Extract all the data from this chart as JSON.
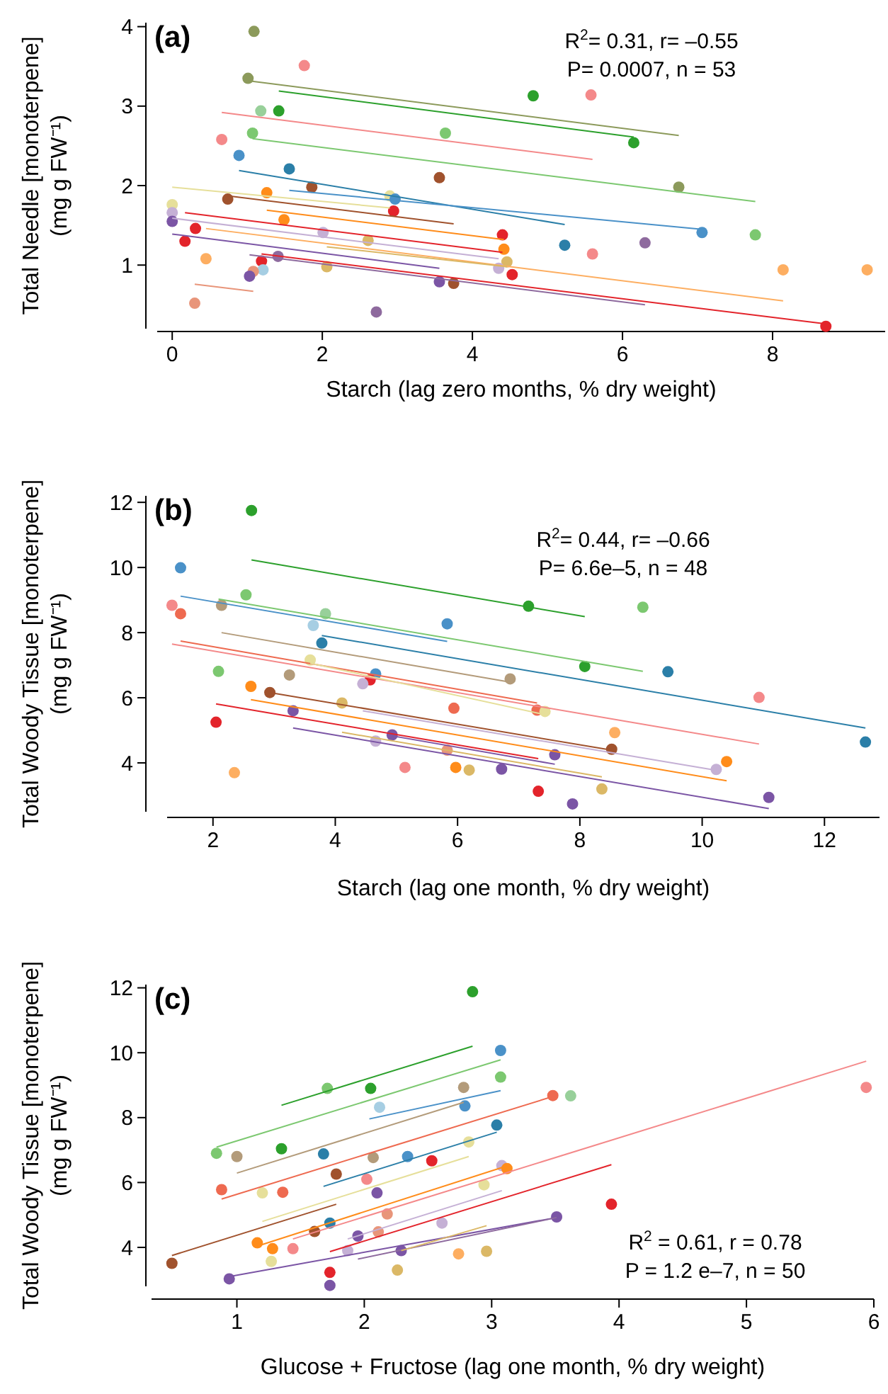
{
  "chart_data": [
    {
      "type": "scatter",
      "title": "(a)",
      "xlabel": "Starch (lag zero months, % dry weight)",
      "ylabel": "Total Needle [monoterpene]\n(mg g FW⁻¹)",
      "annotations": [
        "R$^{2}$= 0.31, r= –0.55",
        "P= 0.0007, n = 53"
      ],
      "xlim": [
        -0.2,
        9.5
      ],
      "ylim": [
        0.2,
        4.05
      ],
      "xticks": [
        0,
        2,
        4,
        6,
        8
      ],
      "yticks": [
        1,
        2,
        3,
        4
      ],
      "grid": false,
      "series": [
        {
          "marker": "circle",
          "x": [
            1.09,
            1.76,
            1.01,
            1.18,
            1.42,
            4.81,
            5.58,
            6.15,
            0.66,
            1.07,
            3.64,
            0.89,
            1.56,
            1.86,
            3.56,
            6.75,
            0.74,
            1.26,
            2.9,
            2.97,
            2.95,
            0,
            0,
            0,
            0.31,
            0.17,
            1.49,
            0.45,
            2.01,
            2.61,
            4.4,
            4.42,
            4.46,
            4.35,
            4.53,
            5.23,
            5.6,
            6.3,
            7.06,
            7.77,
            8.14,
            9.26,
            8.71,
            1.19,
            1.41,
            1.21,
            1.08,
            1.03,
            2.06,
            3.56,
            3.75,
            0.3,
            2.72
          ],
          "values": [
            3.94,
            3.51,
            3.35,
            2.94,
            2.94,
            3.13,
            3.14,
            2.54,
            2.58,
            2.66,
            2.66,
            2.38,
            2.21,
            1.98,
            2.1,
            1.98,
            1.83,
            1.91,
            1.87,
            1.83,
            1.68,
            1.76,
            1.66,
            1.55,
            1.46,
            1.3,
            1.57,
            1.08,
            1.41,
            1.31,
            1.38,
            1.2,
            1.04,
            0.96,
            0.88,
            1.25,
            1.14,
            1.28,
            1.41,
            1.38,
            0.94,
            0.94,
            0.23,
            1.05,
            1.11,
            0.94,
            0.92,
            0.86,
            0.98,
            0.79,
            0.77,
            0.52,
            0.41
          ],
          "colors": [
            "#8c9a5b",
            "#f4898a",
            "#8c9a5b",
            "#98d09a",
            "#2ca02c",
            "#2ca02c",
            "#f4898a",
            "#2ca02c",
            "#f4898a",
            "#7cc870",
            "#7cc870",
            "#4a91c8",
            "#2b7fa8",
            "#a0522d",
            "#a0522d",
            "#8c9a5b",
            "#a0522d",
            "#ff8c1a",
            "#e6df9a",
            "#4a91c8",
            "#e3242b",
            "#e6df9a",
            "#c5b0d5",
            "#7b55a5",
            "#e3242b",
            "#e3242b",
            "#ff8c1a",
            "#fdae61",
            "#c5b0d5",
            "#dbb866",
            "#e3242b",
            "#ff8c1a",
            "#dbb866",
            "#c5b0d5",
            "#e3242b",
            "#2b7fa8",
            "#f4898a",
            "#8e6a9e",
            "#4a91c8",
            "#7cc870",
            "#fdae61",
            "#fdae61",
            "#e3242b",
            "#e3242b",
            "#8e6a9e",
            "#a6cee3",
            "#e8957a",
            "#7b55a5",
            "#dbb866",
            "#7b55a5",
            "#a0522d",
            "#e8957a",
            "#8e6a9e"
          ]
        },
        {
          "type": "line",
          "x": [
            1.01,
            6.75
          ],
          "values": [
            3.32,
            2.63
          ],
          "color": "#8c9a5b",
          "marker": "none"
        },
        {
          "type": "line",
          "x": [
            1.42,
            6.15
          ],
          "values": [
            3.19,
            2.61
          ],
          "color": "#2ca02c"
        },
        {
          "type": "line",
          "x": [
            0.66,
            5.6
          ],
          "values": [
            2.92,
            2.33
          ],
          "color": "#f4898a"
        },
        {
          "type": "line",
          "x": [
            1.07,
            7.77
          ],
          "values": [
            2.59,
            1.8
          ],
          "color": "#7cc870"
        },
        {
          "type": "line",
          "x": [
            0.89,
            5.23
          ],
          "values": [
            2.19,
            1.51
          ],
          "color": "#2b7fa8"
        },
        {
          "type": "line",
          "x": [
            1.56,
            7.06
          ],
          "values": [
            1.94,
            1.45
          ],
          "color": "#4a91c8"
        },
        {
          "type": "line",
          "x": [
            0,
            2.9
          ],
          "values": [
            1.98,
            1.72
          ],
          "color": "#e6df9a"
        },
        {
          "type": "line",
          "x": [
            0.74,
            3.75
          ],
          "values": [
            1.87,
            1.52
          ],
          "color": "#a0522d"
        },
        {
          "type": "line",
          "x": [
            1.26,
            4.42
          ],
          "values": [
            1.69,
            1.32
          ],
          "color": "#ff8c1a"
        },
        {
          "type": "line",
          "x": [
            0.17,
            4.4
          ],
          "values": [
            1.66,
            1.16
          ],
          "color": "#e3242b"
        },
        {
          "type": "line",
          "x": [
            0.45,
            8.14
          ],
          "values": [
            1.46,
            0.55
          ],
          "color": "#fdae61"
        },
        {
          "type": "line",
          "x": [
            0,
            4.35
          ],
          "values": [
            1.59,
            1.08
          ],
          "color": "#c5b0d5"
        },
        {
          "type": "line",
          "x": [
            2.06,
            4.46
          ],
          "values": [
            1.23,
            0.98
          ],
          "color": "#dbb866"
        },
        {
          "type": "line",
          "x": [
            0,
            3.56
          ],
          "values": [
            1.39,
            0.96
          ],
          "color": "#7b55a5"
        },
        {
          "type": "line",
          "x": [
            1.03,
            6.3
          ],
          "values": [
            1.13,
            0.5
          ],
          "color": "#8e6a9e"
        },
        {
          "type": "line",
          "x": [
            1.19,
            8.71
          ],
          "values": [
            1.14,
            0.26
          ],
          "color": "#e3242b"
        },
        {
          "type": "line",
          "x": [
            0.3,
            1.08
          ],
          "values": [
            0.76,
            0.67
          ],
          "color": "#e8957a"
        }
      ]
    },
    {
      "type": "scatter",
      "title": "(b)",
      "xlabel": "Starch (lag one month, % dry weight)",
      "ylabel": "Total Woody Tissue [monoterpene]\n(mg g FW⁻¹)",
      "annotations": [
        "R$^{2}$= 0.44, r= –0.66",
        "P= 6.6e–5, n = 48"
      ],
      "xlim": [
        1.25,
        12.9
      ],
      "ylim": [
        2.5,
        12.2
      ],
      "xticks": [
        2,
        4,
        6,
        8,
        10,
        12
      ],
      "yticks": [
        4,
        6,
        8,
        10,
        12
      ],
      "grid": false,
      "series": [
        {
          "marker": "circle",
          "x": [
            2.63,
            1.47,
            2.54,
            1.33,
            1.47,
            2.14,
            3.84,
            3.64,
            5.83,
            7.16,
            9.03,
            3.78,
            3.59,
            2.09,
            3.25,
            4.66,
            4.57,
            4.45,
            8.08,
            9.44,
            6.86,
            2.62,
            2.93,
            4.11,
            3.31,
            5.94,
            7.3,
            7.43,
            10.93,
            2.05,
            4.93,
            4.66,
            5.83,
            7.59,
            8.57,
            8.52,
            10.4,
            10.23,
            12.67,
            2.35,
            5.14,
            5.97,
            6.19,
            6.72,
            7.32,
            8.36,
            7.88,
            11.09
          ],
          "values": [
            11.75,
            9.99,
            9.16,
            8.84,
            8.58,
            8.84,
            8.58,
            8.22,
            8.27,
            8.81,
            8.78,
            7.68,
            7.16,
            6.81,
            6.7,
            6.73,
            6.55,
            6.43,
            6.96,
            6.8,
            6.58,
            6.35,
            6.16,
            5.84,
            5.6,
            5.68,
            5.62,
            5.58,
            6.01,
            5.25,
            4.86,
            4.67,
            4.39,
            4.25,
            4.93,
            4.42,
            4.04,
            3.8,
            4.64,
            3.7,
            3.86,
            3.86,
            3.78,
            3.81,
            3.13,
            3.2,
            2.74,
            2.94
          ],
          "colors": [
            "#2ca02c",
            "#4a91c8",
            "#7cc870",
            "#f4898a",
            "#ee6a50",
            "#b39b7a",
            "#98d09a",
            "#a6cee3",
            "#4a91c8",
            "#2ca02c",
            "#7cc870",
            "#2b7fa8",
            "#e6df9a",
            "#7cc870",
            "#b39b7a",
            "#4a91c8",
            "#e3242b",
            "#c5b0d5",
            "#2ca02c",
            "#2b7fa8",
            "#b39b7a",
            "#ff8c1a",
            "#a0522d",
            "#dbb866",
            "#7b55a5",
            "#ee6a50",
            "#ee6a50",
            "#e6df9a",
            "#f4898a",
            "#e3242b",
            "#7b55a5",
            "#c5b0d5",
            "#e8957a",
            "#7b55a5",
            "#fdae61",
            "#a0522d",
            "#ff8c1a",
            "#c5b0d5",
            "#2b7fa8",
            "#fdae61",
            "#f4898a",
            "#ff8c1a",
            "#dbb866",
            "#7b55a5",
            "#e3242b",
            "#dbb866",
            "#7b55a5",
            "#7b55a5"
          ]
        },
        {
          "type": "line",
          "x": [
            2.63,
            8.08
          ],
          "values": [
            10.23,
            8.49
          ],
          "color": "#2ca02c"
        },
        {
          "type": "line",
          "x": [
            2.09,
            9.03
          ],
          "values": [
            9.03,
            6.81
          ],
          "color": "#7cc870"
        },
        {
          "type": "line",
          "x": [
            1.47,
            5.83
          ],
          "values": [
            9.12,
            7.73
          ],
          "color": "#4a91c8"
        },
        {
          "type": "line",
          "x": [
            3.78,
            12.67
          ],
          "values": [
            7.91,
            5.07
          ],
          "color": "#2b7fa8"
        },
        {
          "type": "line",
          "x": [
            2.14,
            6.86
          ],
          "values": [
            8.0,
            6.48
          ],
          "color": "#b39b7a"
        },
        {
          "type": "line",
          "x": [
            1.33,
            10.93
          ],
          "values": [
            7.65,
            4.58
          ],
          "color": "#f4898a"
        },
        {
          "type": "line",
          "x": [
            1.47,
            7.3
          ],
          "values": [
            7.74,
            5.84
          ],
          "color": "#ee6a50"
        },
        {
          "type": "line",
          "x": [
            3.59,
            7.43
          ],
          "values": [
            7.06,
            5.48
          ],
          "color": "#e6df9a"
        },
        {
          "type": "line",
          "x": [
            2.93,
            8.52
          ],
          "values": [
            6.16,
            4.39
          ],
          "color": "#a0522d"
        },
        {
          "type": "line",
          "x": [
            2.62,
            10.4
          ],
          "values": [
            5.94,
            3.45
          ],
          "color": "#ff8c1a"
        },
        {
          "type": "line",
          "x": [
            4.45,
            10.23
          ],
          "values": [
            5.6,
            3.77
          ],
          "color": "#c5b0d5"
        },
        {
          "type": "line",
          "x": [
            2.05,
            7.32
          ],
          "values": [
            5.81,
            4.13
          ],
          "color": "#e3242b"
        },
        {
          "type": "line",
          "x": [
            4.93,
            7.59
          ],
          "values": [
            4.83,
            3.96
          ],
          "color": "#7b55a5"
        },
        {
          "type": "line",
          "x": [
            4.11,
            8.36
          ],
          "values": [
            4.94,
            3.57
          ],
          "color": "#dbb866"
        },
        {
          "type": "line",
          "x": [
            3.31,
            11.09
          ],
          "values": [
            5.07,
            2.6
          ],
          "color": "#7b55a5"
        }
      ]
    },
    {
      "type": "scatter",
      "title": "(c)",
      "xlabel": "Glucose + Fructose (lag one month, % dry weight)",
      "ylabel": "Total Woody Tissue [monoterpene]\n(mg g FW⁻¹)",
      "annotations": [
        "R$^{2}$ = 0.61, r = 0.78",
        "P = 1.2 e–7, n = 50"
      ],
      "xlim": [
        0.33,
        6
      ],
      "ylim": [
        2.8,
        12.1
      ],
      "xticks": [
        1,
        2,
        3,
        4,
        5,
        6
      ],
      "yticks": [
        4,
        6,
        8,
        10,
        12
      ],
      "grid": false,
      "series": [
        {
          "marker": "circle",
          "x": [
            2.85,
            3.07,
            3.07,
            3.62,
            5.94,
            3.48,
            2.78,
            2.79,
            2.12,
            1.71,
            2.05,
            3.04,
            2.82,
            0.84,
            1.0,
            1.35,
            1.68,
            2.07,
            2.34,
            2.53,
            3.08,
            3.12,
            1.78,
            0.88,
            1.2,
            1.36,
            2.02,
            2.1,
            2.94,
            3.94,
            3.51,
            2.18,
            1.73,
            2.61,
            1.61,
            1.95,
            2.11,
            1.16,
            1.28,
            1.44,
            1.27,
            1.87,
            2.29,
            2.74,
            2.96,
            2.26,
            1.73,
            1.73,
            0.94,
            0.49
          ],
          "values": [
            11.88,
            10.07,
            9.25,
            8.67,
            8.93,
            8.68,
            8.93,
            8.36,
            8.32,
            8.9,
            8.9,
            7.77,
            7.25,
            6.9,
            6.8,
            7.04,
            6.88,
            6.77,
            6.8,
            6.67,
            6.52,
            6.43,
            6.26,
            5.78,
            5.68,
            5.7,
            6.1,
            5.68,
            5.93,
            5.33,
            4.94,
            5.03,
            4.75,
            4.75,
            4.49,
            4.35,
            4.48,
            4.14,
            3.96,
            3.96,
            3.57,
            3.9,
            3.9,
            3.8,
            3.88,
            3.3,
            3.23,
            2.83,
            3.03,
            3.51
          ],
          "colors": [
            "#2ca02c",
            "#4a91c8",
            "#7cc870",
            "#98d09a",
            "#f4898a",
            "#ee6a50",
            "#b39b7a",
            "#4a91c8",
            "#a6cee3",
            "#7cc870",
            "#2ca02c",
            "#2b7fa8",
            "#e6df9a",
            "#7cc870",
            "#b39b7a",
            "#2ca02c",
            "#2b7fa8",
            "#b39b7a",
            "#4a91c8",
            "#e3242b",
            "#c5b0d5",
            "#ff8c1a",
            "#a0522d",
            "#ee6a50",
            "#e6df9a",
            "#ee6a50",
            "#f4898a",
            "#7b55a5",
            "#e6df9a",
            "#e3242b",
            "#7b55a5",
            "#e8957a",
            "#2b7fa8",
            "#c5b0d5",
            "#a0522d",
            "#7b55a5",
            "#e8957a",
            "#ff8c1a",
            "#ff8c1a",
            "#f4898a",
            "#e6df9a",
            "#c5b0d5",
            "#7b55a5",
            "#fdae61",
            "#dbb866",
            "#dbb866",
            "#e3242b",
            "#7b55a5",
            "#7b55a5",
            "#a0522d"
          ]
        },
        {
          "type": "line",
          "x": [
            1.35,
            2.85
          ],
          "values": [
            8.38,
            10.2
          ],
          "color": "#2ca02c"
        },
        {
          "type": "line",
          "x": [
            0.84,
            3.07
          ],
          "values": [
            7.09,
            9.78
          ],
          "color": "#7cc870"
        },
        {
          "type": "line",
          "x": [
            1.0,
            2.78
          ],
          "values": [
            6.29,
            8.47
          ],
          "color": "#b39b7a"
        },
        {
          "type": "line",
          "x": [
            2.04,
            3.07
          ],
          "values": [
            7.96,
            8.83
          ],
          "color": "#4a91c8"
        },
        {
          "type": "line",
          "x": [
            1.68,
            3.04
          ],
          "values": [
            5.88,
            7.55
          ],
          "color": "#2b7fa8"
        },
        {
          "type": "line",
          "x": [
            0.88,
            3.48
          ],
          "values": [
            5.49,
            8.65
          ],
          "color": "#ee6a50"
        },
        {
          "type": "line",
          "x": [
            1.2,
            2.82
          ],
          "values": [
            4.8,
            6.8
          ],
          "color": "#e6df9a"
        },
        {
          "type": "line",
          "x": [
            0.49,
            1.78
          ],
          "values": [
            3.75,
            5.33
          ],
          "color": "#a0522d"
        },
        {
          "type": "line",
          "x": [
            1.16,
            3.12
          ],
          "values": [
            4.04,
            6.51
          ],
          "color": "#ff8c1a"
        },
        {
          "type": "line",
          "x": [
            1.44,
            5.94
          ],
          "values": [
            4.26,
            9.74
          ],
          "color": "#f4898a"
        },
        {
          "type": "line",
          "x": [
            1.87,
            3.08
          ],
          "values": [
            4.26,
            5.75
          ],
          "color": "#c5b0d5"
        },
        {
          "type": "line",
          "x": [
            1.73,
            3.94
          ],
          "values": [
            3.87,
            6.55
          ],
          "color": "#e3242b"
        },
        {
          "type": "line",
          "x": [
            0.94,
            3.51
          ],
          "values": [
            3.1,
            4.92
          ],
          "color": "#7b55a5"
        },
        {
          "type": "line",
          "x": [
            1.95,
            3.51
          ],
          "values": [
            3.64,
            4.92
          ],
          "color": "#8e6a9e"
        },
        {
          "type": "line",
          "x": [
            2.29,
            2.96
          ],
          "values": [
            3.9,
            4.67
          ],
          "color": "#dbb866"
        }
      ]
    }
  ]
}
